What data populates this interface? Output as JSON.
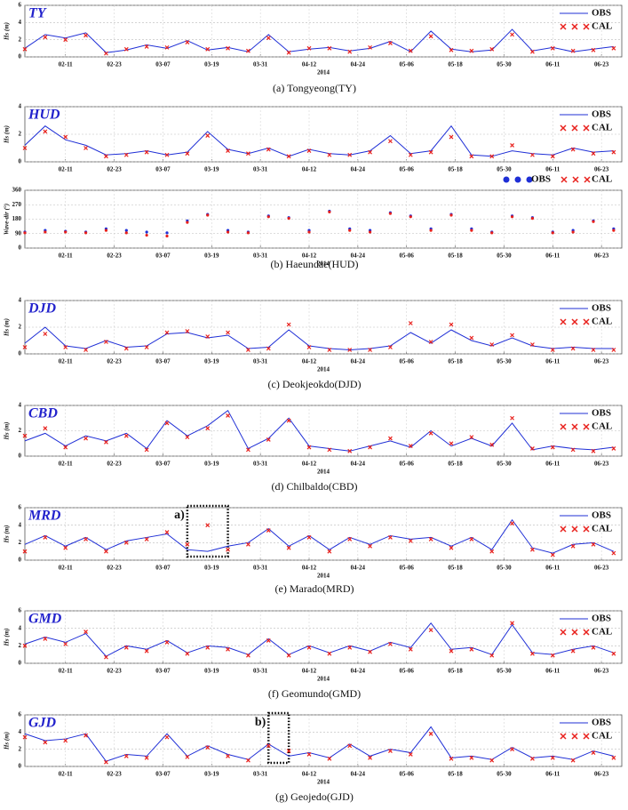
{
  "chart_data": [
    {
      "type": "line",
      "title": "TY",
      "ylabel": "Hs (m)",
      "xlabel": "2014",
      "caption": "(a)  Tongyeong(TY)",
      "legend": "upper right",
      "grid": true,
      "x": [
        "02-01",
        "02-06",
        "02-11",
        "02-16",
        "02-21",
        "02-26",
        "03-03",
        "03-08",
        "03-13",
        "03-18",
        "03-23",
        "03-28",
        "04-02",
        "04-07",
        "04-12",
        "04-17",
        "04-22",
        "04-27",
        "05-02",
        "05-07",
        "05-12",
        "05-17",
        "05-22",
        "05-27",
        "06-01",
        "06-06",
        "06-11",
        "06-16",
        "06-21",
        "06-26"
      ],
      "xlim": [
        "02-01",
        "06-28"
      ],
      "xticks": [
        "02-11",
        "02-23",
        "03-07",
        "03-19",
        "03-31",
        "04-12",
        "04-24",
        "05-06",
        "05-18",
        "05-30",
        "06-11",
        "06-23"
      ],
      "ylim": [
        0,
        6
      ],
      "yticks": [
        0,
        2,
        4,
        6
      ],
      "series": [
        {
          "name": "OBS",
          "color": "#1f2fd6",
          "marker": "line",
          "values": [
            1.0,
            2.6,
            2.2,
            2.8,
            0.5,
            0.8,
            1.4,
            1.0,
            1.9,
            0.8,
            1.1,
            0.6,
            2.6,
            0.6,
            0.9,
            1.1,
            0.7,
            1.0,
            1.8,
            0.6,
            3.0,
            0.9,
            0.6,
            0.8,
            3.2,
            0.7,
            1.1,
            0.6,
            0.9,
            1.2
          ]
        },
        {
          "name": "CAL",
          "color": "#e8201c",
          "marker": "x",
          "values": [
            0.9,
            2.3,
            2.0,
            2.5,
            0.4,
            0.9,
            1.2,
            1.1,
            1.7,
            0.9,
            1.0,
            0.7,
            2.2,
            0.5,
            1.0,
            1.0,
            0.6,
            1.1,
            1.6,
            0.7,
            2.4,
            0.8,
            0.7,
            0.9,
            2.6,
            0.6,
            1.0,
            0.7,
            0.8,
            1.0
          ]
        }
      ]
    },
    {
      "type": "line",
      "title": "HUD",
      "ylabel": "Hs (m)",
      "legend": "upper right",
      "grid": true,
      "x": [
        "02-01",
        "02-06",
        "02-11",
        "02-16",
        "02-21",
        "02-26",
        "03-03",
        "03-08",
        "03-13",
        "03-18",
        "03-23",
        "03-28",
        "04-02",
        "04-07",
        "04-12",
        "04-17",
        "04-22",
        "04-27",
        "05-02",
        "05-07",
        "05-12",
        "05-17",
        "05-22",
        "05-27",
        "06-01",
        "06-06",
        "06-11",
        "06-16",
        "06-21",
        "06-26"
      ],
      "xlim": [
        "02-01",
        "06-28"
      ],
      "xticks": [
        "02-11",
        "02-23",
        "03-07",
        "03-19",
        "03-31",
        "04-12",
        "04-24",
        "05-06",
        "05-18",
        "05-30",
        "06-11",
        "06-23"
      ],
      "ylim": [
        0,
        4
      ],
      "yticks": [
        0,
        2,
        4
      ],
      "series": [
        {
          "name": "OBS",
          "color": "#1f2fd6",
          "marker": "line",
          "values": [
            1.2,
            2.6,
            1.6,
            1.2,
            0.5,
            0.6,
            0.8,
            0.5,
            0.7,
            2.2,
            0.9,
            0.6,
            1.0,
            0.4,
            0.9,
            0.6,
            0.5,
            0.8,
            1.9,
            0.6,
            0.8,
            2.6,
            0.5,
            0.4,
            0.8,
            0.6,
            0.5,
            1.0,
            0.7,
            0.8
          ]
        },
        {
          "name": "CAL",
          "color": "#e8201c",
          "marker": "x",
          "values": [
            1.0,
            2.2,
            1.8,
            1.0,
            0.4,
            0.5,
            0.7,
            0.5,
            0.6,
            1.9,
            0.8,
            0.6,
            0.9,
            0.4,
            0.8,
            0.5,
            0.5,
            0.7,
            1.5,
            0.5,
            0.7,
            1.8,
            0.4,
            0.4,
            1.2,
            0.5,
            0.4,
            0.9,
            0.6,
            0.7
          ]
        }
      ]
    },
    {
      "type": "scatter",
      "ylabel": "Wave-dir (°)",
      "xlabel": "2014",
      "caption": "(b)  Haeundae(HUD)",
      "legend": "upper right",
      "grid": true,
      "x": [
        "02-01",
        "02-06",
        "02-11",
        "02-16",
        "02-21",
        "02-26",
        "03-03",
        "03-08",
        "03-13",
        "03-18",
        "03-23",
        "03-28",
        "04-02",
        "04-07",
        "04-12",
        "04-17",
        "04-22",
        "04-27",
        "05-02",
        "05-07",
        "05-12",
        "05-17",
        "05-22",
        "05-27",
        "06-01",
        "06-06",
        "06-11",
        "06-16",
        "06-21",
        "06-26"
      ],
      "xlim": [
        "02-01",
        "06-28"
      ],
      "xticks": [
        "02-11",
        "02-23",
        "03-07",
        "03-19",
        "03-31",
        "04-12",
        "04-24",
        "05-06",
        "05-18",
        "05-30",
        "06-11",
        "06-23"
      ],
      "ylim": [
        0,
        360
      ],
      "yticks": [
        0,
        90,
        180,
        270,
        360
      ],
      "series": [
        {
          "name": "OBS",
          "color": "#1f2fd6",
          "values": [
            100,
            110,
            105,
            100,
            120,
            110,
            100,
            95,
            170,
            210,
            110,
            100,
            200,
            190,
            110,
            230,
            120,
            110,
            220,
            200,
            120,
            210,
            120,
            100,
            200,
            190,
            100,
            110,
            170,
            120
          ]
        },
        {
          "name": "CAL",
          "color": "#e8201c",
          "values": [
            95,
            100,
            100,
            95,
            110,
            95,
            80,
            75,
            160,
            205,
            100,
            95,
            195,
            185,
            100,
            225,
            110,
            100,
            215,
            195,
            110,
            205,
            110,
            95,
            195,
            185,
            95,
            100,
            165,
            110
          ]
        }
      ]
    },
    {
      "type": "line",
      "title": "DJD",
      "ylabel": "Hs (m)",
      "xlabel": "2014",
      "caption": "(c)  Deokjeokdo(DJD)",
      "legend": "upper right",
      "grid": true,
      "x": [
        "02-01",
        "02-06",
        "02-11",
        "02-16",
        "02-21",
        "02-26",
        "03-03",
        "03-08",
        "03-13",
        "03-18",
        "03-23",
        "03-28",
        "04-02",
        "04-07",
        "04-12",
        "04-17",
        "04-22",
        "04-27",
        "05-02",
        "05-07",
        "05-12",
        "05-17",
        "05-22",
        "05-27",
        "06-01",
        "06-06",
        "06-11",
        "06-16",
        "06-21",
        "06-26"
      ],
      "xlim": [
        "02-01",
        "06-28"
      ],
      "xticks": [
        "02-11",
        "02-23",
        "03-07",
        "03-19",
        "03-31",
        "04-12",
        "04-24",
        "05-06",
        "05-18",
        "05-30",
        "06-11",
        "06-23"
      ],
      "ylim": [
        0,
        4
      ],
      "yticks": [
        0,
        2,
        4
      ],
      "series": [
        {
          "name": "OBS",
          "color": "#1f2fd6",
          "marker": "line",
          "values": [
            0.8,
            2.0,
            0.6,
            0.4,
            1.0,
            0.5,
            0.6,
            1.5,
            1.6,
            1.2,
            1.4,
            0.4,
            0.5,
            1.8,
            0.6,
            0.4,
            0.3,
            0.4,
            0.6,
            1.6,
            0.8,
            1.8,
            1.0,
            0.6,
            1.2,
            0.6,
            0.4,
            0.5,
            0.4,
            0.4
          ]
        },
        {
          "name": "CAL",
          "color": "#e8201c",
          "marker": "x",
          "values": [
            0.5,
            1.5,
            0.5,
            0.3,
            0.9,
            0.4,
            0.5,
            1.6,
            1.7,
            1.3,
            1.6,
            0.3,
            0.4,
            2.2,
            0.5,
            0.3,
            0.3,
            0.3,
            0.5,
            2.3,
            0.9,
            2.2,
            1.2,
            0.7,
            1.4,
            0.7,
            0.3,
            0.4,
            0.3,
            0.3
          ]
        }
      ]
    },
    {
      "type": "line",
      "title": "CBD",
      "ylabel": "Hs (m)",
      "xlabel": "2014",
      "caption": "(d)  Chilbaldo(CBD)",
      "legend": "upper right",
      "grid": true,
      "x": [
        "02-01",
        "02-06",
        "02-11",
        "02-16",
        "02-21",
        "02-26",
        "03-03",
        "03-08",
        "03-13",
        "03-18",
        "03-23",
        "03-28",
        "04-02",
        "04-07",
        "04-12",
        "04-17",
        "04-22",
        "04-27",
        "05-02",
        "05-07",
        "05-12",
        "05-17",
        "05-22",
        "05-27",
        "06-01",
        "06-06",
        "06-11",
        "06-16",
        "06-21",
        "06-26"
      ],
      "xlim": [
        "02-01",
        "06-28"
      ],
      "xticks": [
        "02-11",
        "02-23",
        "03-07",
        "03-19",
        "03-31",
        "04-12",
        "04-24",
        "05-06",
        "05-18",
        "05-30",
        "06-11",
        "06-23"
      ],
      "ylim": [
        0,
        4
      ],
      "yticks": [
        0,
        2,
        4
      ],
      "series": [
        {
          "name": "OBS",
          "color": "#1f2fd6",
          "marker": "line",
          "values": [
            1.2,
            1.8,
            0.8,
            1.6,
            1.2,
            1.8,
            0.6,
            2.8,
            1.6,
            2.4,
            3.6,
            0.6,
            1.4,
            3.0,
            0.8,
            0.6,
            0.4,
            0.8,
            1.2,
            0.7,
            2.0,
            0.8,
            1.4,
            0.8,
            2.6,
            0.5,
            0.8,
            0.6,
            0.5,
            0.7
          ]
        },
        {
          "name": "CAL",
          "color": "#e8201c",
          "marker": "x",
          "values": [
            1.6,
            2.2,
            0.7,
            1.4,
            1.1,
            1.6,
            0.5,
            2.6,
            1.5,
            2.2,
            3.2,
            0.5,
            1.3,
            2.8,
            0.7,
            0.5,
            0.4,
            0.7,
            1.4,
            0.8,
            1.8,
            1.0,
            1.5,
            0.9,
            3.0,
            0.6,
            0.7,
            0.5,
            0.4,
            0.6
          ]
        }
      ]
    },
    {
      "type": "line",
      "title": "MRD",
      "ylabel": "Hs (m)",
      "xlabel": "2014",
      "caption": "(e)  Marado(MRD)",
      "legend": "upper right",
      "grid": true,
      "annotation": "a)",
      "annotation_x": [
        "03-13",
        "03-23"
      ],
      "x": [
        "02-01",
        "02-06",
        "02-11",
        "02-16",
        "02-21",
        "02-26",
        "03-03",
        "03-08",
        "03-13",
        "03-18",
        "03-23",
        "03-28",
        "04-02",
        "04-07",
        "04-12",
        "04-17",
        "04-22",
        "04-27",
        "05-02",
        "05-07",
        "05-12",
        "05-17",
        "05-22",
        "05-27",
        "06-01",
        "06-06",
        "06-11",
        "06-16",
        "06-21",
        "06-26"
      ],
      "xlim": [
        "02-01",
        "06-28"
      ],
      "xticks": [
        "02-11",
        "02-23",
        "03-07",
        "03-19",
        "03-31",
        "04-12",
        "04-24",
        "05-06",
        "05-18",
        "05-30",
        "06-11",
        "06-23"
      ],
      "ylim": [
        0,
        6
      ],
      "yticks": [
        0,
        2,
        4,
        6
      ],
      "series": [
        {
          "name": "OBS",
          "color": "#1f2fd6",
          "marker": "line",
          "values": [
            1.8,
            2.8,
            1.6,
            2.6,
            1.2,
            2.2,
            2.6,
            3.0,
            1.2,
            1.0,
            1.6,
            2.0,
            3.6,
            1.6,
            2.8,
            1.2,
            2.6,
            1.8,
            2.8,
            2.4,
            2.6,
            1.6,
            2.6,
            1.2,
            4.6,
            1.4,
            0.8,
            1.8,
            2.0,
            1.0
          ]
        },
        {
          "name": "CAL",
          "color": "#e8201c",
          "marker": "x",
          "values": [
            1.0,
            2.6,
            1.4,
            2.4,
            1.0,
            2.0,
            2.4,
            3.2,
            1.8,
            4.0,
            1.2,
            1.8,
            3.4,
            1.4,
            2.6,
            1.0,
            2.4,
            1.6,
            2.6,
            2.2,
            2.4,
            1.4,
            2.4,
            1.0,
            4.2,
            1.2,
            0.6,
            1.6,
            1.8,
            0.8
          ]
        }
      ]
    },
    {
      "type": "line",
      "title": "GMD",
      "ylabel": "Hs (m)",
      "xlabel": "2014",
      "caption": "(f)  Geomundo(GMD)",
      "legend": "upper right",
      "grid": true,
      "x": [
        "02-01",
        "02-06",
        "02-11",
        "02-16",
        "02-21",
        "02-26",
        "03-03",
        "03-08",
        "03-13",
        "03-18",
        "03-23",
        "03-28",
        "04-02",
        "04-07",
        "04-12",
        "04-17",
        "04-22",
        "04-27",
        "05-02",
        "05-07",
        "05-12",
        "05-17",
        "05-22",
        "05-27",
        "06-01",
        "06-06",
        "06-11",
        "06-16",
        "06-21",
        "06-26"
      ],
      "xlim": [
        "02-01",
        "06-28"
      ],
      "xticks": [
        "02-11",
        "02-23",
        "03-07",
        "03-19",
        "03-31",
        "04-12",
        "04-24",
        "05-06",
        "05-18",
        "05-30",
        "06-11",
        "06-23"
      ],
      "ylim": [
        0,
        6
      ],
      "yticks": [
        0,
        2,
        4,
        6
      ],
      "series": [
        {
          "name": "OBS",
          "color": "#1f2fd6",
          "marker": "line",
          "values": [
            2.2,
            3.0,
            2.4,
            3.4,
            0.8,
            2.0,
            1.6,
            2.6,
            1.2,
            2.0,
            1.8,
            1.0,
            2.8,
            1.0,
            2.0,
            1.2,
            2.0,
            1.4,
            2.4,
            1.8,
            4.6,
            1.6,
            1.8,
            1.0,
            4.4,
            1.2,
            1.0,
            1.6,
            2.0,
            1.2
          ]
        },
        {
          "name": "CAL",
          "color": "#e8201c",
          "marker": "x",
          "values": [
            2.0,
            2.8,
            2.2,
            3.6,
            0.7,
            1.8,
            1.4,
            2.4,
            1.1,
            1.8,
            1.6,
            0.9,
            2.6,
            0.9,
            1.8,
            1.1,
            1.8,
            1.3,
            2.2,
            1.6,
            3.8,
            1.4,
            1.6,
            0.9,
            4.6,
            1.1,
            0.9,
            1.4,
            1.8,
            1.1
          ]
        }
      ]
    },
    {
      "type": "line",
      "title": "GJD",
      "ylabel": "Hs (m)",
      "xlabel": "2014",
      "caption": "(g)  Geojedo(GJD)",
      "legend": "upper right",
      "grid": true,
      "annotation": "b)",
      "annotation_x": [
        "04-02",
        "04-07"
      ],
      "x": [
        "02-01",
        "02-06",
        "02-11",
        "02-16",
        "02-21",
        "02-26",
        "03-03",
        "03-08",
        "03-13",
        "03-18",
        "03-23",
        "03-28",
        "04-02",
        "04-07",
        "04-12",
        "04-17",
        "04-22",
        "04-27",
        "05-02",
        "05-07",
        "05-12",
        "05-17",
        "05-22",
        "05-27",
        "06-01",
        "06-06",
        "06-11",
        "06-16",
        "06-21",
        "06-26"
      ],
      "xlim": [
        "02-01",
        "06-28"
      ],
      "xticks": [
        "02-11",
        "02-23",
        "03-07",
        "03-19",
        "03-31",
        "04-12",
        "04-24",
        "05-06",
        "05-18",
        "05-30",
        "06-11",
        "06-23"
      ],
      "ylim": [
        0,
        6
      ],
      "yticks": [
        0,
        2,
        4,
        6
      ],
      "series": [
        {
          "name": "OBS",
          "color": "#1f2fd6",
          "marker": "line",
          "values": [
            3.8,
            3.0,
            3.2,
            3.8,
            0.6,
            1.4,
            1.2,
            3.8,
            1.2,
            2.4,
            1.4,
            0.8,
            2.6,
            1.2,
            1.6,
            1.0,
            2.6,
            1.2,
            2.0,
            1.6,
            4.6,
            1.0,
            1.2,
            0.8,
            2.2,
            1.0,
            1.2,
            0.8,
            1.8,
            1.2
          ]
        },
        {
          "name": "CAL",
          "color": "#e8201c",
          "marker": "x",
          "values": [
            3.4,
            2.8,
            3.0,
            3.6,
            0.5,
            1.2,
            1.0,
            3.4,
            1.1,
            2.2,
            1.2,
            0.7,
            2.4,
            1.8,
            1.4,
            0.9,
            2.4,
            1.0,
            1.8,
            1.4,
            3.8,
            0.9,
            1.0,
            0.7,
            2.0,
            0.9,
            1.0,
            0.7,
            1.6,
            1.0
          ]
        }
      ]
    }
  ]
}
